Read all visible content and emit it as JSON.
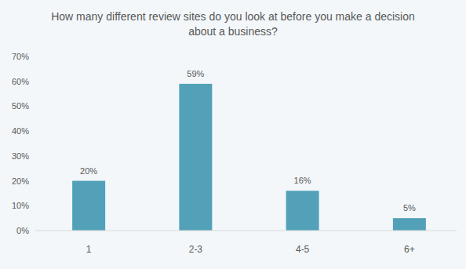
{
  "chart_data": {
    "type": "bar",
    "title": "How many different review sites do you look at before you make a decision about a business?",
    "categories": [
      "1",
      "2-3",
      "4-5",
      "6+"
    ],
    "values": [
      20,
      59,
      16,
      5
    ],
    "value_labels": [
      "20%",
      "59%",
      "16%",
      "5%"
    ],
    "color": "#53a1b9",
    "ylim": [
      0,
      70
    ],
    "yticks": [
      {
        "value": 0,
        "label": "0%"
      },
      {
        "value": 10,
        "label": "10%"
      },
      {
        "value": 20,
        "label": "20%"
      },
      {
        "value": 30,
        "label": "30%"
      },
      {
        "value": 40,
        "label": "40%"
      },
      {
        "value": 50,
        "label": "50%"
      },
      {
        "value": 60,
        "label": "60%"
      },
      {
        "value": 70,
        "label": "70%"
      }
    ],
    "grid": false,
    "data_labels": true
  }
}
